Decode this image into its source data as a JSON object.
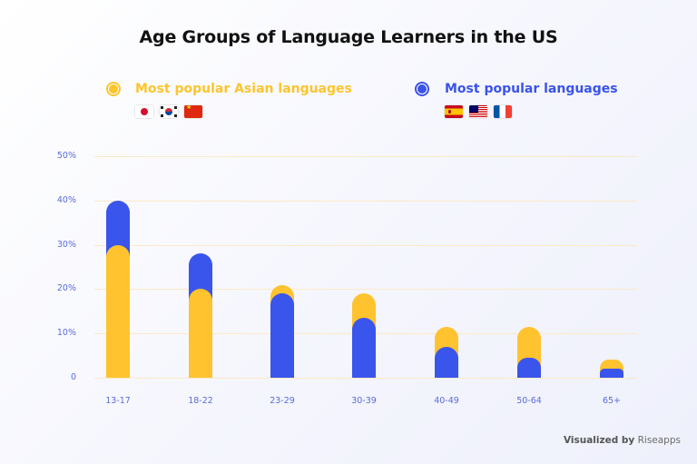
{
  "title": "Age Groups of Language Learners in the US",
  "legend": [
    {
      "label": "Most popular Asian languages",
      "color": "#fcc52e",
      "flags": [
        "jp-flag",
        "kr-flag",
        "cn-flag"
      ]
    },
    {
      "label": "Most popular languages",
      "color": "#3a53e8",
      "flags": [
        "es-flag",
        "my-flag",
        "fr-flag"
      ]
    }
  ],
  "footer": {
    "prefix": "Visualized by",
    "brand": "Riseapps"
  },
  "chart_data": {
    "type": "bar",
    "title": "Age Groups of Language Learners in the US",
    "xlabel": "",
    "ylabel": "",
    "categories": [
      "13-17",
      "18-22",
      "23-29",
      "30-39",
      "40-49",
      "50-64",
      "65+"
    ],
    "series": [
      {
        "name": "Most popular Asian languages",
        "color": "#fec32f",
        "values": [
          30,
          20,
          21,
          19,
          11.5,
          11.5,
          4
        ]
      },
      {
        "name": "Most popular languages",
        "color": "#3a55ec",
        "values": [
          40,
          28,
          19,
          13.5,
          7,
          4.5,
          2
        ]
      }
    ],
    "y_ticks": [
      "0",
      "10%",
      "20%",
      "30%",
      "40%",
      "50%"
    ],
    "ylim": [
      0,
      50
    ],
    "grid": true,
    "legend_position": "top",
    "overlapping_bars": true
  }
}
